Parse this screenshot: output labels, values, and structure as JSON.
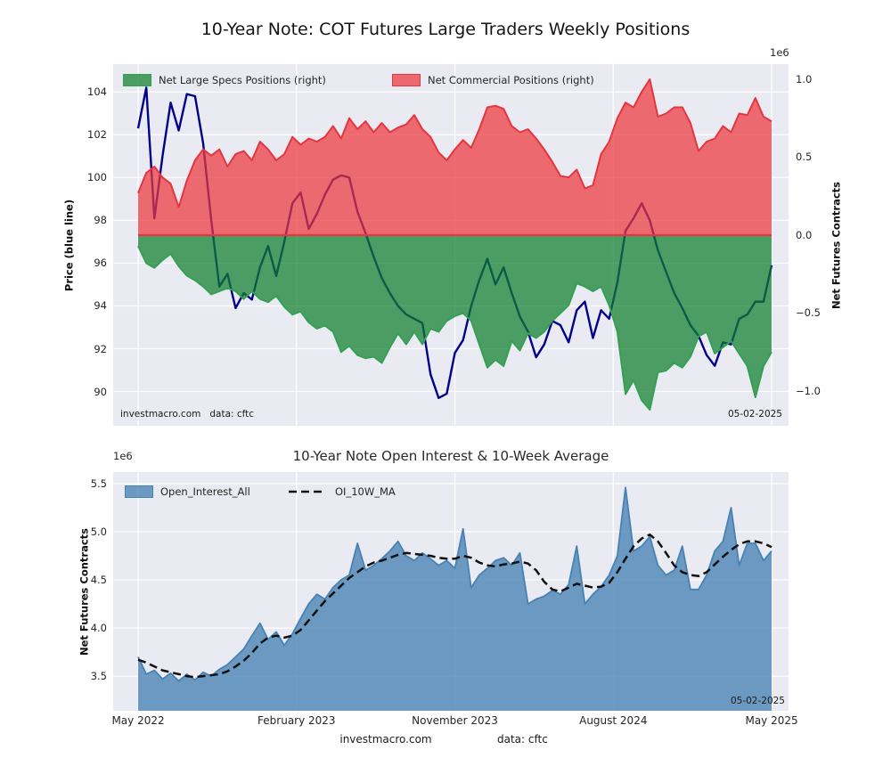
{
  "title": "10-Year Note: COT Futures Large Traders Weekly Positions",
  "colors": {
    "figure_bg": "#ffffff",
    "axes_bg": "#eaeaf2",
    "grid": "#ffffff",
    "price_line": "#00008b",
    "commercial_fill": "rgba(235,55,60,0.72)",
    "commercial_edge": "#e5353f",
    "specs_fill": "rgba(15,128,45,0.72)",
    "specs_edge": "#35a055",
    "oi_fill": "rgba(70,130,180,0.78)",
    "oi_edge": "#4682b4",
    "ma_line": "#111111",
    "text": "#262626"
  },
  "x_axis": {
    "tick_labels": [
      "May 2022",
      "February 2023",
      "November 2023",
      "August 2024",
      "May 2025"
    ],
    "tick_weeks": [
      0,
      39,
      78,
      117,
      156
    ]
  },
  "top_chart": {
    "ylabel_left": "Price (blue line)",
    "ylabel_right": "Net Futures Contracts",
    "offset_label": "1e6",
    "left_ticks": [
      90,
      92,
      94,
      96,
      98,
      100,
      102,
      104
    ],
    "right_ticks": [
      "1.0",
      "0.5",
      "0.0",
      "−0.5",
      "−1.0"
    ],
    "right_tick_values": [
      1.0,
      0.5,
      0.0,
      -0.5,
      -1.0
    ],
    "legend": [
      {
        "label": "Net Large Specs Positions (right)",
        "color": "green"
      },
      {
        "label": "Net Commercial Positions (right)",
        "color": "red"
      }
    ],
    "watermark": "investmacro.com",
    "source": "data: cftc",
    "date_label": "05-02-2025"
  },
  "bottom_chart": {
    "title": "10-Year Note Open Interest & 10-Week Average",
    "ylabel_left": "Net Futures Contracts",
    "offset_label": "1e6",
    "left_ticks": [
      "3.5",
      "4.0",
      "4.5",
      "5.0",
      "5.5"
    ],
    "left_tick_values": [
      3.5,
      4.0,
      4.5,
      5.0,
      5.5
    ],
    "legend": [
      {
        "label": "Open_Interest_All",
        "color": "steelblue"
      },
      {
        "label": "OI_10W_MA",
        "color": "black-dashed"
      }
    ],
    "date_label": "05-02-2025"
  },
  "footer": {
    "watermark": "investmacro.com",
    "source": "data: cftc"
  },
  "chart_data": [
    {
      "type": "line+area",
      "title": "10-Year Note: COT Futures Large Traders Weekly Positions",
      "x_description": "weekly (May 2022 - May 2025), values estimated at 2-week steps",
      "x_weeks": [
        0,
        2,
        4,
        6,
        8,
        10,
        12,
        14,
        16,
        18,
        20,
        22,
        24,
        26,
        28,
        30,
        32,
        34,
        36,
        38,
        40,
        42,
        44,
        46,
        48,
        50,
        52,
        54,
        56,
        58,
        60,
        62,
        64,
        66,
        68,
        70,
        72,
        74,
        76,
        78,
        80,
        82,
        84,
        86,
        88,
        90,
        92,
        94,
        96,
        98,
        100,
        102,
        104,
        106,
        108,
        110,
        112,
        114,
        116,
        118,
        120,
        122,
        124,
        126,
        128,
        130,
        132,
        134,
        136,
        138,
        140,
        142,
        144,
        146,
        148,
        150,
        152,
        154,
        156
      ],
      "ylim_left": [
        88.4,
        105.3
      ],
      "ylim_right": [
        -1.223,
        1.097
      ],
      "ylabel_left": "Price (blue line)",
      "ylabel_right": "Net Futures Contracts (1e6)",
      "grid": true,
      "series": [
        {
          "name": "Price",
          "axis": "left",
          "style": "line",
          "values": [
            102.3,
            104.2,
            98.1,
            101.0,
            103.5,
            102.2,
            103.9,
            103.8,
            101.6,
            98.0,
            94.9,
            95.5,
            93.9,
            94.6,
            94.3,
            95.8,
            96.8,
            95.4,
            97.0,
            98.8,
            99.3,
            97.6,
            98.3,
            99.2,
            99.9,
            100.1,
            100.0,
            98.4,
            97.4,
            96.3,
            95.3,
            94.6,
            94.0,
            93.6,
            93.4,
            93.2,
            90.8,
            89.7,
            89.9,
            91.8,
            92.4,
            94.0,
            95.2,
            96.2,
            95.0,
            95.8,
            94.6,
            93.5,
            92.8,
            91.6,
            92.2,
            93.3,
            93.1,
            92.3,
            93.8,
            94.2,
            92.5,
            93.8,
            93.4,
            95.1,
            97.5,
            98.1,
            98.8,
            98.0,
            96.6,
            95.6,
            94.6,
            93.9,
            93.1,
            92.6,
            91.7,
            91.2,
            92.3,
            92.2,
            93.4,
            93.6,
            94.2,
            94.2,
            95.9
          ]
        },
        {
          "name": "Net Commercial Positions (right)",
          "axis": "right",
          "style": "area-from-zero",
          "unit": "millions of contracts",
          "values": [
            0.27,
            0.4,
            0.44,
            0.37,
            0.33,
            0.18,
            0.35,
            0.48,
            0.55,
            0.51,
            0.55,
            0.44,
            0.52,
            0.54,
            0.48,
            0.6,
            0.55,
            0.48,
            0.52,
            0.63,
            0.58,
            0.62,
            0.6,
            0.63,
            0.7,
            0.62,
            0.75,
            0.68,
            0.73,
            0.66,
            0.72,
            0.66,
            0.69,
            0.71,
            0.77,
            0.68,
            0.63,
            0.53,
            0.48,
            0.55,
            0.61,
            0.56,
            0.68,
            0.82,
            0.83,
            0.81,
            0.7,
            0.66,
            0.68,
            0.62,
            0.55,
            0.47,
            0.38,
            0.37,
            0.42,
            0.3,
            0.32,
            0.52,
            0.6,
            0.75,
            0.85,
            0.82,
            0.92,
            1.0,
            0.76,
            0.78,
            0.82,
            0.82,
            0.72,
            0.54,
            0.6,
            0.62,
            0.7,
            0.66,
            0.78,
            0.77,
            0.88,
            0.76,
            0.73
          ]
        },
        {
          "name": "Net Large Specs Positions (right)",
          "axis": "right",
          "style": "area-from-zero",
          "unit": "millions of contracts",
          "values": [
            -0.07,
            -0.18,
            -0.21,
            -0.16,
            -0.12,
            -0.2,
            -0.26,
            -0.29,
            -0.33,
            -0.38,
            -0.36,
            -0.34,
            -0.36,
            -0.41,
            -0.36,
            -0.41,
            -0.43,
            -0.39,
            -0.46,
            -0.51,
            -0.49,
            -0.56,
            -0.6,
            -0.58,
            -0.62,
            -0.75,
            -0.71,
            -0.77,
            -0.79,
            -0.78,
            -0.82,
            -0.72,
            -0.63,
            -0.7,
            -0.62,
            -0.7,
            -0.6,
            -0.62,
            -0.55,
            -0.52,
            -0.5,
            -0.55,
            -0.7,
            -0.85,
            -0.8,
            -0.84,
            -0.68,
            -0.74,
            -0.63,
            -0.66,
            -0.62,
            -0.55,
            -0.5,
            -0.45,
            -0.31,
            -0.33,
            -0.36,
            -0.33,
            -0.45,
            -0.62,
            -1.02,
            -0.93,
            -1.06,
            -1.12,
            -0.88,
            -0.87,
            -0.82,
            -0.85,
            -0.78,
            -0.65,
            -0.62,
            -0.76,
            -0.72,
            -0.68,
            -0.76,
            -0.84,
            -1.04,
            -0.84,
            -0.75
          ]
        }
      ]
    },
    {
      "type": "area+line",
      "title": "10-Year Note Open Interest & 10-Week Average",
      "x_description": "weekly (May 2022 - May 2025), values estimated at 2-week steps, scale 1e6 contracts",
      "ylim": [
        3.14,
        5.62
      ],
      "ylabel": "Net Futures Contracts (1e6)",
      "grid": true,
      "series": [
        {
          "name": "Open_Interest_All",
          "style": "area",
          "values": [
            3.7,
            3.52,
            3.56,
            3.47,
            3.53,
            3.45,
            3.52,
            3.46,
            3.54,
            3.5,
            3.57,
            3.62,
            3.7,
            3.78,
            3.92,
            4.05,
            3.88,
            3.96,
            3.82,
            3.94,
            4.1,
            4.25,
            4.35,
            4.3,
            4.42,
            4.5,
            4.55,
            4.88,
            4.6,
            4.65,
            4.72,
            4.8,
            4.9,
            4.75,
            4.7,
            4.78,
            4.72,
            4.65,
            4.7,
            4.62,
            5.03,
            4.42,
            4.55,
            4.62,
            4.7,
            4.73,
            4.65,
            4.78,
            4.25,
            4.3,
            4.33,
            4.39,
            4.35,
            4.45,
            4.85,
            4.25,
            4.35,
            4.43,
            4.55,
            4.75,
            5.46,
            4.8,
            4.85,
            4.95,
            4.65,
            4.55,
            4.6,
            4.85,
            4.4,
            4.4,
            4.55,
            4.8,
            4.9,
            5.25,
            4.65,
            4.88,
            4.88,
            4.7,
            4.8
          ]
        },
        {
          "name": "OI_10W_MA",
          "style": "dashed-line",
          "values": [
            3.67,
            3.64,
            3.6,
            3.56,
            3.54,
            3.52,
            3.5,
            3.49,
            3.5,
            3.51,
            3.52,
            3.55,
            3.6,
            3.66,
            3.74,
            3.84,
            3.9,
            3.92,
            3.9,
            3.92,
            3.98,
            4.08,
            4.18,
            4.28,
            4.36,
            4.44,
            4.52,
            4.58,
            4.64,
            4.68,
            4.7,
            4.73,
            4.76,
            4.78,
            4.77,
            4.76,
            4.75,
            4.73,
            4.72,
            4.72,
            4.75,
            4.73,
            4.68,
            4.65,
            4.64,
            4.66,
            4.67,
            4.69,
            4.67,
            4.6,
            4.48,
            4.4,
            4.38,
            4.42,
            4.46,
            4.44,
            4.42,
            4.43,
            4.47,
            4.58,
            4.72,
            4.85,
            4.93,
            4.97,
            4.9,
            4.78,
            4.65,
            4.58,
            4.55,
            4.54,
            4.58,
            4.66,
            4.74,
            4.81,
            4.87,
            4.9,
            4.9,
            4.88,
            4.84
          ]
        }
      ]
    }
  ]
}
